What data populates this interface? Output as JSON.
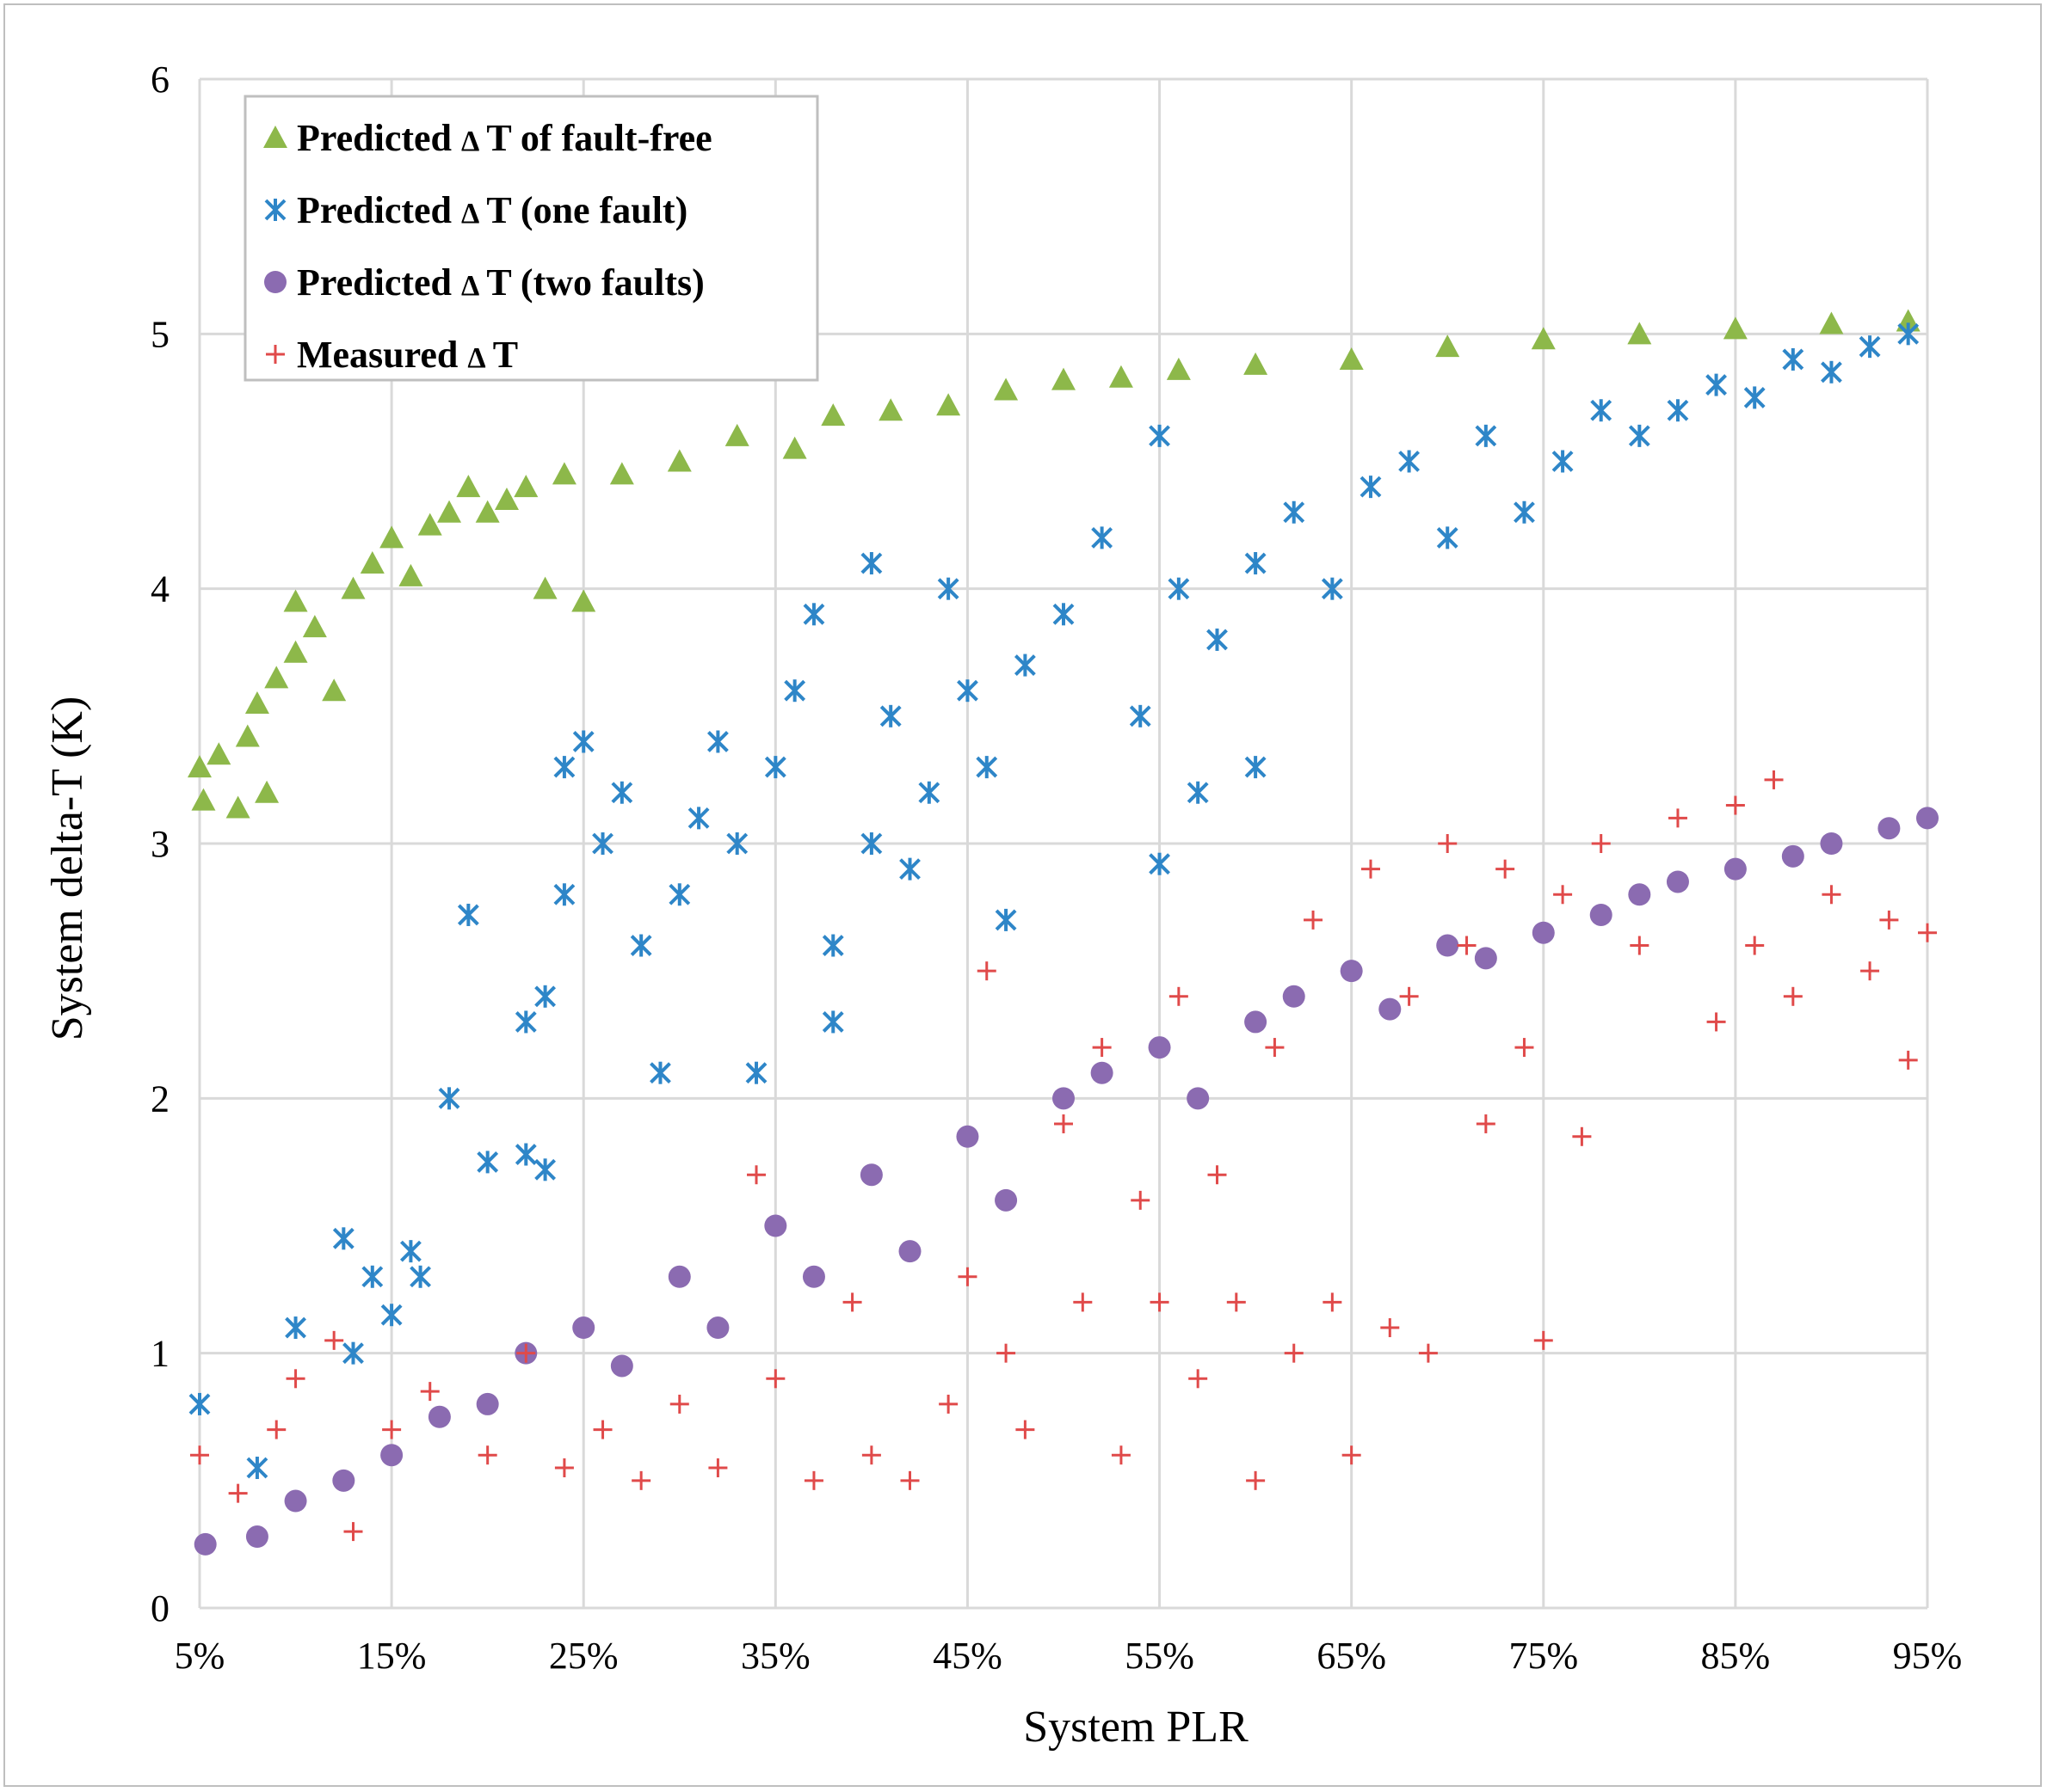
{
  "chart_data": {
    "type": "scatter",
    "title": "",
    "xlabel": "System  PLR",
    "ylabel": "System delta-T (K)",
    "xlim": [
      0.05,
      0.95
    ],
    "ylim": [
      0,
      6
    ],
    "x_ticks": [
      0.05,
      0.15,
      0.25,
      0.35,
      0.45,
      0.55,
      0.65,
      0.75,
      0.85,
      0.95
    ],
    "x_tick_labels": [
      "5%",
      "15%",
      "25%",
      "35%",
      "45%",
      "55%",
      "65%",
      "75%",
      "85%",
      "95%"
    ],
    "y_ticks": [
      0,
      1,
      2,
      3,
      4,
      5,
      6
    ],
    "y_tick_labels": [
      "0",
      "1",
      "2",
      "3",
      "4",
      "5",
      "6"
    ],
    "grid": true,
    "legend_position": "top-left",
    "series": [
      {
        "name": "Predicted ΔT of fault-free",
        "label_prefix": "Predicted ",
        "label_symbol": "Δ",
        "label_suffix": "T of fault-free",
        "marker": "triangle",
        "color": "#8DB84A",
        "points": [
          [
            0.05,
            3.3
          ],
          [
            0.052,
            3.17
          ],
          [
            0.06,
            3.35
          ],
          [
            0.07,
            3.14
          ],
          [
            0.075,
            3.42
          ],
          [
            0.08,
            3.55
          ],
          [
            0.085,
            3.2
          ],
          [
            0.09,
            3.65
          ],
          [
            0.1,
            3.75
          ],
          [
            0.1,
            3.95
          ],
          [
            0.11,
            3.85
          ],
          [
            0.12,
            3.6
          ],
          [
            0.13,
            4.0
          ],
          [
            0.14,
            4.1
          ],
          [
            0.15,
            4.2
          ],
          [
            0.16,
            4.05
          ],
          [
            0.17,
            4.25
          ],
          [
            0.18,
            4.3
          ],
          [
            0.19,
            4.4
          ],
          [
            0.2,
            4.3
          ],
          [
            0.21,
            4.35
          ],
          [
            0.22,
            4.4
          ],
          [
            0.23,
            4.0
          ],
          [
            0.25,
            3.95
          ],
          [
            0.24,
            4.45
          ],
          [
            0.27,
            4.45
          ],
          [
            0.3,
            4.5
          ],
          [
            0.33,
            4.6
          ],
          [
            0.36,
            4.55
          ],
          [
            0.38,
            4.68
          ],
          [
            0.41,
            4.7
          ],
          [
            0.44,
            4.72
          ],
          [
            0.47,
            4.78
          ],
          [
            0.5,
            4.82
          ],
          [
            0.53,
            4.83
          ],
          [
            0.56,
            4.86
          ],
          [
            0.6,
            4.88
          ],
          [
            0.65,
            4.9
          ],
          [
            0.7,
            4.95
          ],
          [
            0.75,
            4.98
          ],
          [
            0.8,
            5.0
          ],
          [
            0.85,
            5.02
          ],
          [
            0.9,
            5.04
          ],
          [
            0.94,
            5.05
          ]
        ]
      },
      {
        "name": "Predicted ΔT (one fault)",
        "label_prefix": "Predicted ",
        "label_symbol": "Δ",
        "label_suffix": "T (one fault)",
        "marker": "asterisk",
        "color": "#2E86C8",
        "points": [
          [
            0.05,
            0.8
          ],
          [
            0.08,
            0.55
          ],
          [
            0.1,
            1.1
          ],
          [
            0.125,
            1.45
          ],
          [
            0.13,
            1.0
          ],
          [
            0.14,
            1.3
          ],
          [
            0.15,
            1.15
          ],
          [
            0.16,
            1.4
          ],
          [
            0.165,
            1.3
          ],
          [
            0.18,
            2.0
          ],
          [
            0.19,
            2.72
          ],
          [
            0.2,
            1.75
          ],
          [
            0.22,
            1.78
          ],
          [
            0.23,
            1.72
          ],
          [
            0.22,
            2.3
          ],
          [
            0.23,
            2.4
          ],
          [
            0.24,
            2.8
          ],
          [
            0.24,
            3.3
          ],
          [
            0.25,
            3.4
          ],
          [
            0.26,
            3.0
          ],
          [
            0.27,
            3.2
          ],
          [
            0.28,
            2.6
          ],
          [
            0.29,
            2.1
          ],
          [
            0.3,
            2.8
          ],
          [
            0.31,
            3.1
          ],
          [
            0.32,
            3.4
          ],
          [
            0.33,
            3.0
          ],
          [
            0.34,
            2.1
          ],
          [
            0.35,
            3.3
          ],
          [
            0.36,
            3.6
          ],
          [
            0.37,
            3.9
          ],
          [
            0.38,
            2.6
          ],
          [
            0.38,
            2.3
          ],
          [
            0.4,
            4.1
          ],
          [
            0.41,
            3.5
          ],
          [
            0.42,
            2.9
          ],
          [
            0.43,
            3.2
          ],
          [
            0.44,
            4.0
          ],
          [
            0.45,
            3.6
          ],
          [
            0.46,
            3.3
          ],
          [
            0.47,
            2.7
          ],
          [
            0.48,
            3.7
          ],
          [
            0.5,
            3.9
          ],
          [
            0.52,
            4.2
          ],
          [
            0.54,
            3.5
          ],
          [
            0.56,
            4.0
          ],
          [
            0.58,
            3.8
          ],
          [
            0.6,
            4.1
          ],
          [
            0.62,
            4.3
          ],
          [
            0.64,
            4.0
          ],
          [
            0.66,
            4.4
          ],
          [
            0.68,
            4.5
          ],
          [
            0.7,
            4.2
          ],
          [
            0.72,
            4.6
          ],
          [
            0.74,
            4.3
          ],
          [
            0.76,
            4.5
          ],
          [
            0.78,
            4.7
          ],
          [
            0.8,
            4.6
          ],
          [
            0.82,
            4.7
          ],
          [
            0.84,
            4.8
          ],
          [
            0.86,
            4.75
          ],
          [
            0.88,
            4.9
          ],
          [
            0.9,
            4.85
          ],
          [
            0.92,
            4.95
          ],
          [
            0.94,
            5.0
          ],
          [
            0.6,
            3.3
          ],
          [
            0.57,
            3.2
          ],
          [
            0.55,
            2.92
          ],
          [
            0.4,
            3.0
          ],
          [
            0.55,
            4.6
          ]
        ]
      },
      {
        "name": "Predicted ΔT (two faults)",
        "label_prefix": "Predicted ",
        "label_symbol": "Δ",
        "label_suffix": "T (two faults)",
        "marker": "circle",
        "color": "#8B6BB1",
        "points": [
          [
            0.053,
            0.25
          ],
          [
            0.08,
            0.28
          ],
          [
            0.1,
            0.42
          ],
          [
            0.125,
            0.5
          ],
          [
            0.15,
            0.6
          ],
          [
            0.175,
            0.75
          ],
          [
            0.2,
            0.8
          ],
          [
            0.22,
            1.0
          ],
          [
            0.25,
            1.1
          ],
          [
            0.27,
            0.95
          ],
          [
            0.3,
            1.3
          ],
          [
            0.32,
            1.1
          ],
          [
            0.35,
            1.5
          ],
          [
            0.37,
            1.3
          ],
          [
            0.4,
            1.7
          ],
          [
            0.42,
            1.4
          ],
          [
            0.45,
            1.85
          ],
          [
            0.47,
            1.6
          ],
          [
            0.5,
            2.0
          ],
          [
            0.52,
            2.1
          ],
          [
            0.55,
            2.2
          ],
          [
            0.57,
            2.0
          ],
          [
            0.6,
            2.3
          ],
          [
            0.62,
            2.4
          ],
          [
            0.65,
            2.5
          ],
          [
            0.67,
            2.35
          ],
          [
            0.7,
            2.6
          ],
          [
            0.72,
            2.55
          ],
          [
            0.75,
            2.65
          ],
          [
            0.78,
            2.72
          ],
          [
            0.8,
            2.8
          ],
          [
            0.82,
            2.85
          ],
          [
            0.85,
            2.9
          ],
          [
            0.88,
            2.95
          ],
          [
            0.9,
            3.0
          ],
          [
            0.93,
            3.06
          ],
          [
            0.95,
            3.1
          ]
        ]
      },
      {
        "name": "Measured ΔT",
        "label_prefix": "Measured ",
        "label_symbol": "Δ",
        "label_suffix": "T",
        "marker": "plus",
        "color": "#E04A4A",
        "points": [
          [
            0.05,
            0.6
          ],
          [
            0.07,
            0.45
          ],
          [
            0.09,
            0.7
          ],
          [
            0.1,
            0.9
          ],
          [
            0.12,
            1.05
          ],
          [
            0.13,
            0.3
          ],
          [
            0.15,
            0.7
          ],
          [
            0.17,
            0.85
          ],
          [
            0.2,
            0.6
          ],
          [
            0.22,
            1.0
          ],
          [
            0.24,
            0.55
          ],
          [
            0.26,
            0.7
          ],
          [
            0.28,
            0.5
          ],
          [
            0.3,
            0.8
          ],
          [
            0.32,
            0.55
          ],
          [
            0.34,
            1.7
          ],
          [
            0.35,
            0.9
          ],
          [
            0.37,
            0.5
          ],
          [
            0.39,
            1.2
          ],
          [
            0.4,
            0.6
          ],
          [
            0.42,
            0.5
          ],
          [
            0.44,
            0.8
          ],
          [
            0.45,
            1.3
          ],
          [
            0.46,
            2.5
          ],
          [
            0.47,
            1.0
          ],
          [
            0.48,
            0.7
          ],
          [
            0.5,
            1.9
          ],
          [
            0.51,
            1.2
          ],
          [
            0.52,
            2.2
          ],
          [
            0.53,
            0.6
          ],
          [
            0.54,
            1.6
          ],
          [
            0.55,
            1.2
          ],
          [
            0.56,
            2.4
          ],
          [
            0.57,
            0.9
          ],
          [
            0.58,
            1.7
          ],
          [
            0.59,
            1.2
          ],
          [
            0.6,
            0.5
          ],
          [
            0.61,
            2.2
          ],
          [
            0.62,
            1.0
          ],
          [
            0.63,
            2.7
          ],
          [
            0.64,
            1.2
          ],
          [
            0.65,
            0.6
          ],
          [
            0.66,
            2.9
          ],
          [
            0.67,
            1.1
          ],
          [
            0.68,
            2.4
          ],
          [
            0.69,
            1.0
          ],
          [
            0.7,
            3.0
          ],
          [
            0.71,
            2.6
          ],
          [
            0.72,
            1.9
          ],
          [
            0.73,
            2.9
          ],
          [
            0.74,
            2.2
          ],
          [
            0.75,
            1.05
          ],
          [
            0.76,
            2.8
          ],
          [
            0.77,
            1.85
          ],
          [
            0.78,
            3.0
          ],
          [
            0.8,
            2.6
          ],
          [
            0.82,
            3.1
          ],
          [
            0.84,
            2.3
          ],
          [
            0.85,
            3.15
          ],
          [
            0.86,
            2.6
          ],
          [
            0.87,
            3.25
          ],
          [
            0.88,
            2.4
          ],
          [
            0.9,
            2.8
          ],
          [
            0.92,
            2.5
          ],
          [
            0.93,
            2.7
          ],
          [
            0.94,
            2.15
          ],
          [
            0.95,
            2.65
          ]
        ]
      }
    ]
  }
}
